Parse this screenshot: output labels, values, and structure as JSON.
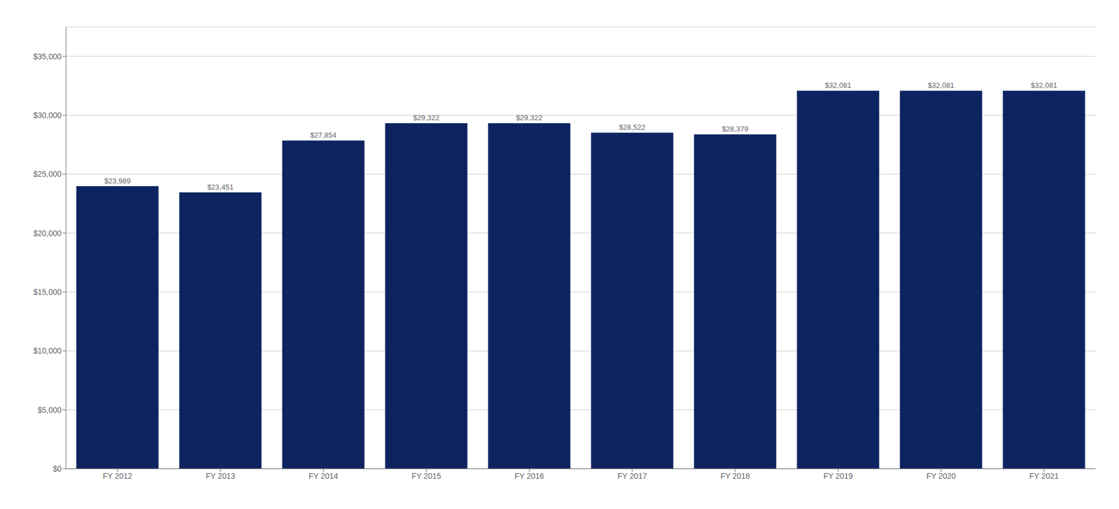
{
  "chart_data": {
    "type": "bar",
    "categories": [
      "FY 2012",
      "FY 2013",
      "FY 2014",
      "FY 2015",
      "FY 2016",
      "FY 2017",
      "FY 2018",
      "FY 2019",
      "FY 2020",
      "FY 2021"
    ],
    "values": [
      23989,
      23451,
      27854,
      29322,
      29322,
      28522,
      28379,
      32081,
      32081,
      32081
    ],
    "value_labels": [
      "$23,989",
      "$23,451",
      "$27,854",
      "$29,322",
      "$29,322",
      "$28,522",
      "$28,379",
      "$32,081",
      "$32,081",
      "$32,081"
    ],
    "data_labels": true,
    "color": "#0D2461",
    "ylim": [
      0,
      37500
    ],
    "yticks": [
      {
        "value": 0,
        "label": "$0"
      },
      {
        "value": 5000,
        "label": "$5,000"
      },
      {
        "value": 10000,
        "label": "$10,000"
      },
      {
        "value": 15000,
        "label": "$15,000"
      },
      {
        "value": 20000,
        "label": "$20,000"
      },
      {
        "value": 25000,
        "label": "$25,000"
      },
      {
        "value": 30000,
        "label": "$30,000"
      },
      {
        "value": 35000,
        "label": "$35,000"
      }
    ],
    "grid": true
  }
}
